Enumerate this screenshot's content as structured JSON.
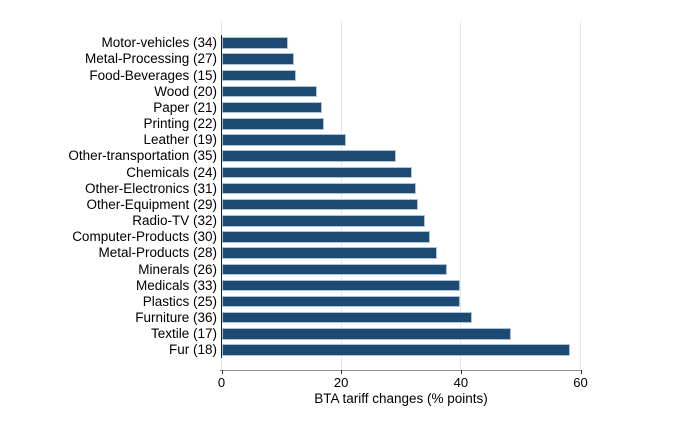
{
  "chart_data": {
    "type": "bar",
    "orientation": "horizontal",
    "title": "",
    "xlabel": "BTA tariff changes (% points)",
    "ylabel": "",
    "xlim": [
      0,
      60
    ],
    "xticks": [
      0,
      20,
      40,
      60
    ],
    "xtick_labels": [
      "0",
      "20",
      "40",
      "60"
    ],
    "grid": true,
    "legend": "none",
    "bar_color": "#1d4a72",
    "bar_border_color": "#aec3d5",
    "gridline_color": "#e7e7e7",
    "categories": [
      "Motor-vehicles (34)",
      "Metal-Processing (27)",
      "Food-Beverages (15)",
      "Wood (20)",
      "Paper (21)",
      "Printing (22)",
      "Leather (19)",
      "Other-transportation (35)",
      "Chemicals (24)",
      "Other-Electronics (31)",
      "Other-Equipment (29)",
      "Radio-TV (32)",
      "Computer-Products (30)",
      "Metal-Products (28)",
      "Minerals (26)",
      "Medicals (33)",
      "Plastics (25)",
      "Furniture (36)",
      "Textile (17)",
      "Fur (18)"
    ],
    "values": [
      11,
      12,
      12.4,
      15.8,
      16.7,
      17.1,
      20.8,
      29.1,
      31.8,
      32.4,
      32.7,
      34,
      34.8,
      36,
      37.6,
      39.7,
      39.8,
      41.7,
      48.3,
      58.2
    ]
  }
}
